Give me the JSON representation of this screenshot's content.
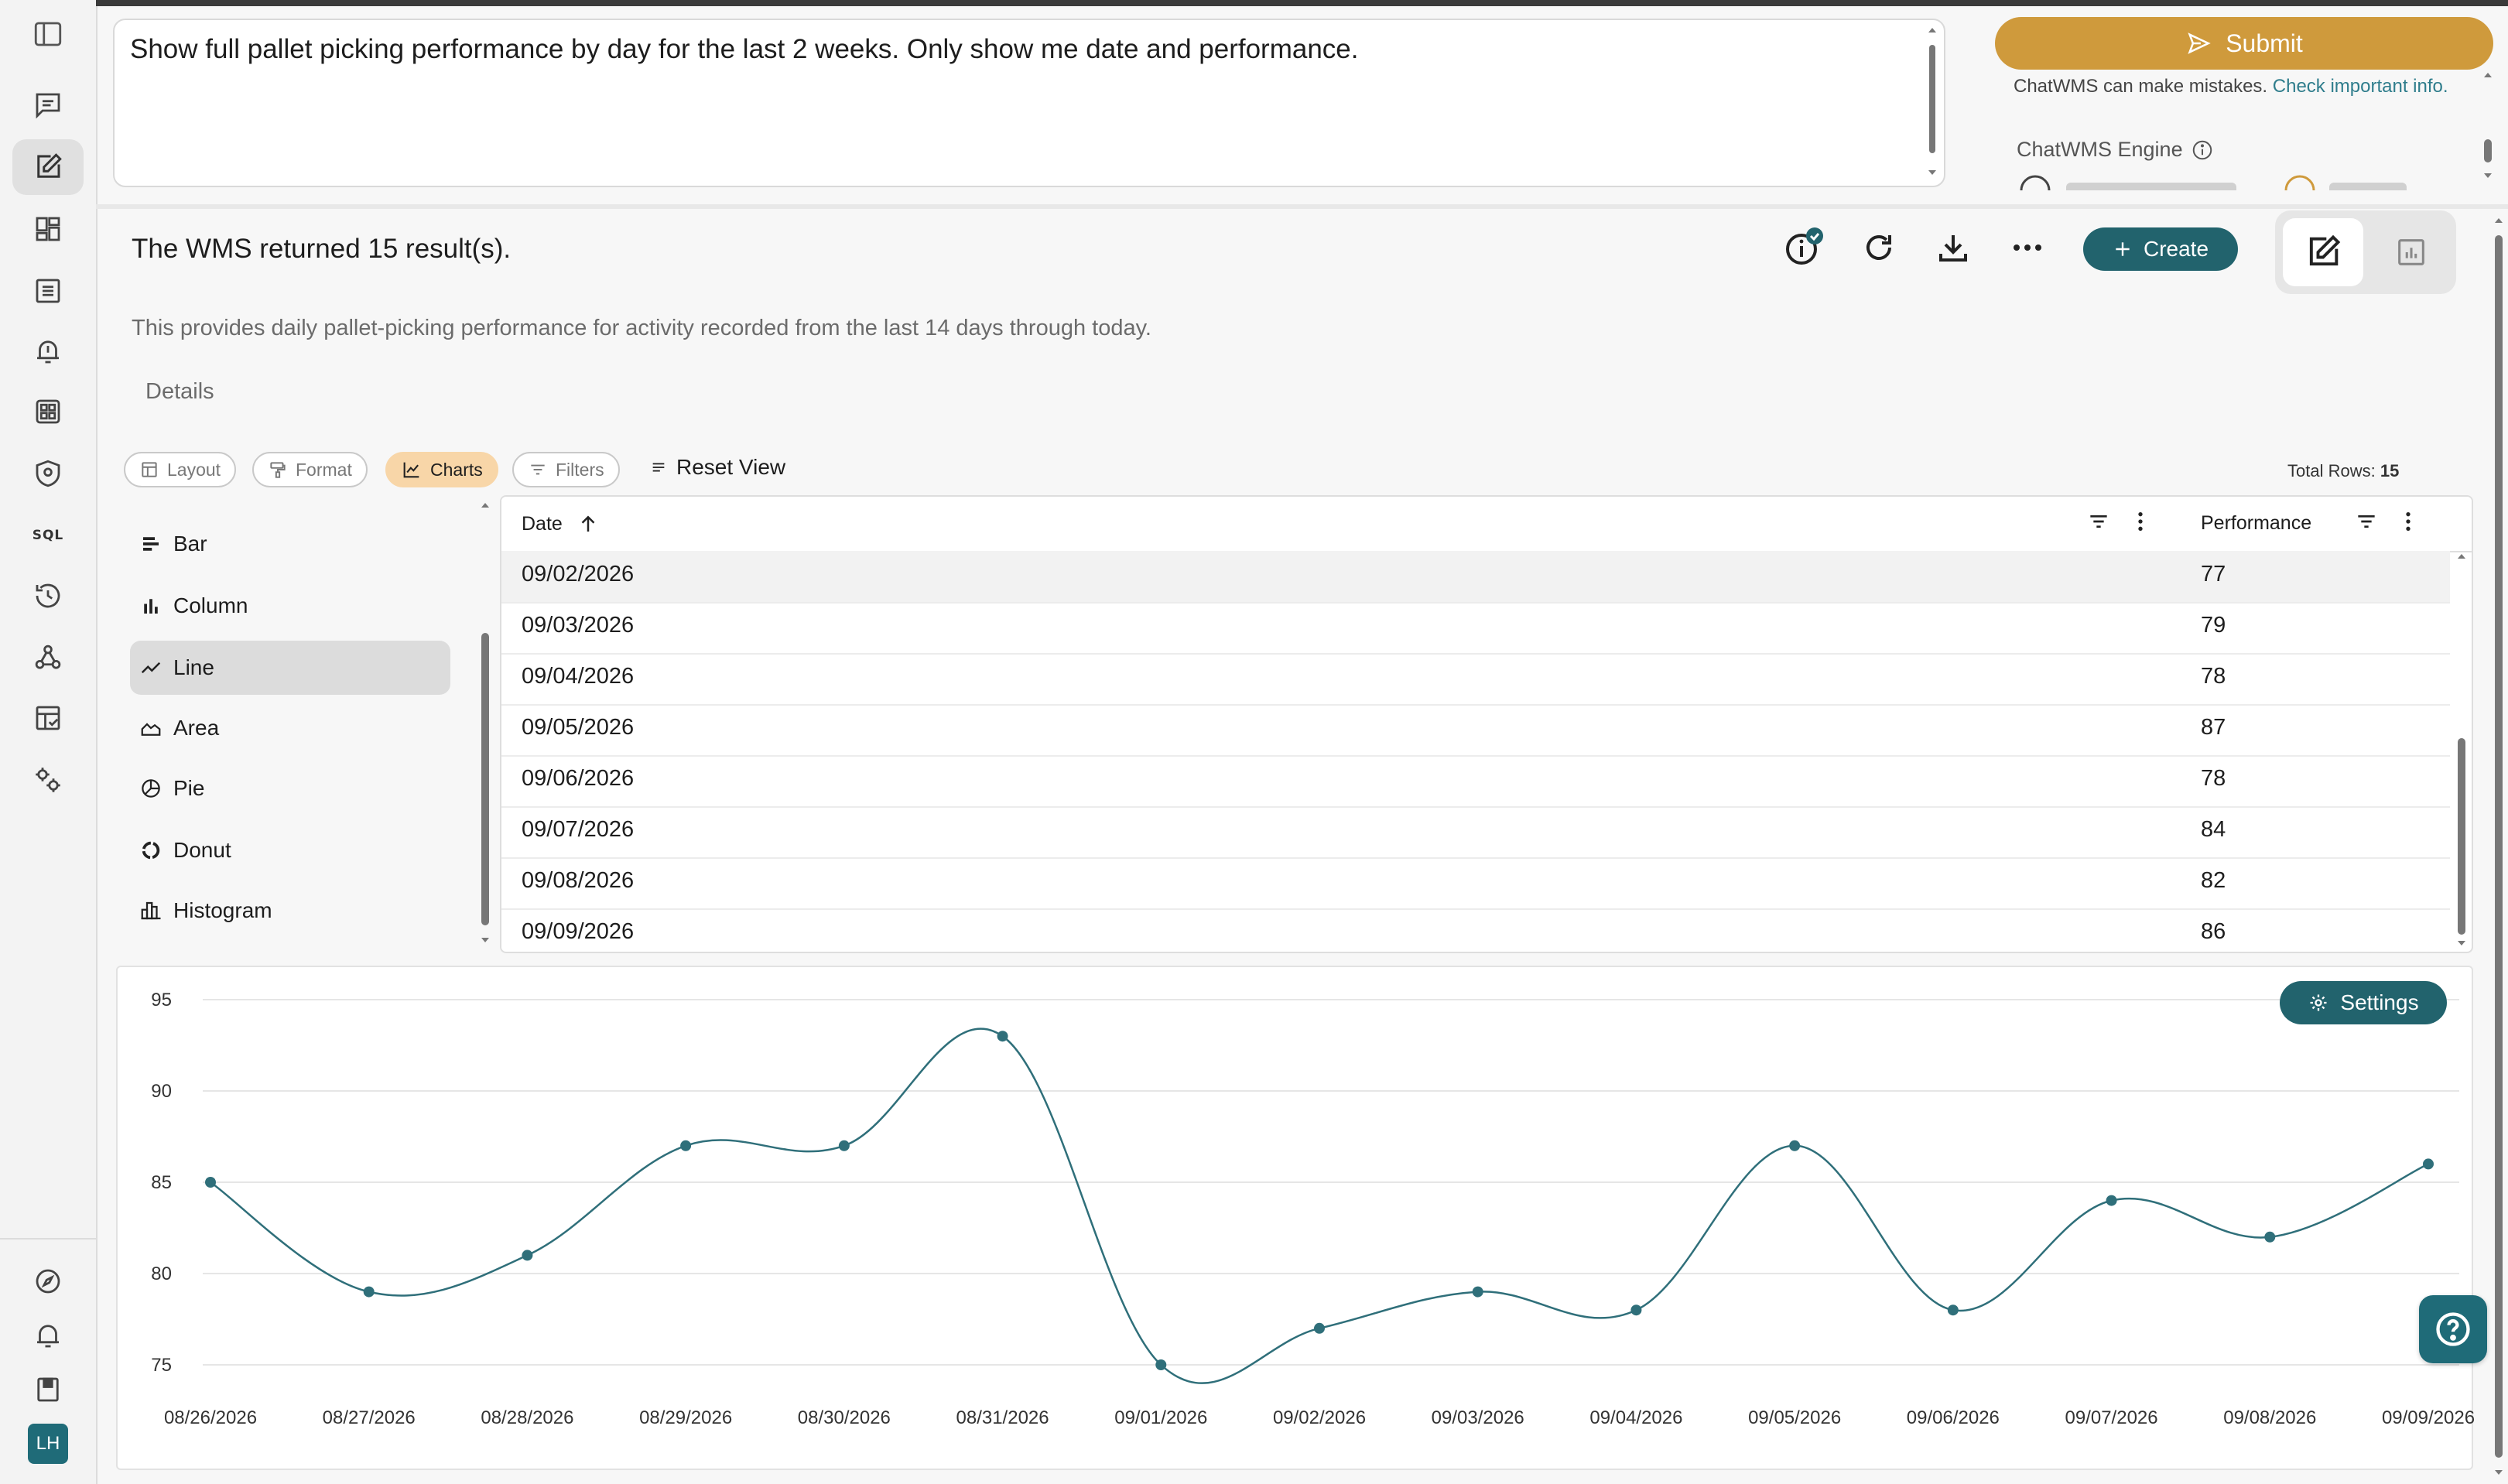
{
  "query": {
    "text": "Show full pallet picking performance by day for the last 2 weeks. Only show me date and performance."
  },
  "submit": {
    "label": "Submit"
  },
  "disclaimer": {
    "text": "ChatWMS can make mistakes.",
    "link": "Check important info."
  },
  "engine": {
    "label": "ChatWMS Engine"
  },
  "result": {
    "title": "The WMS returned 15 result(s).",
    "description": "This provides daily pallet-picking performance for activity recorded from the last 14 days through today.",
    "details_label": "Details"
  },
  "toolbar": {
    "create_label": "Create",
    "layout_label": "Layout",
    "format_label": "Format",
    "charts_label": "Charts",
    "filters_label": "Filters",
    "reset_label": "Reset View",
    "total_rows_label": "Total Rows:",
    "total_rows_value": "15"
  },
  "chart_types": [
    "Bar",
    "Column",
    "Line",
    "Area",
    "Pie",
    "Donut",
    "Histogram"
  ],
  "selected_chart_type": "Line",
  "table": {
    "columns": [
      "Date",
      "Performance"
    ],
    "rows": [
      [
        "09/02/2026",
        "77"
      ],
      [
        "09/03/2026",
        "79"
      ],
      [
        "09/04/2026",
        "78"
      ],
      [
        "09/05/2026",
        "87"
      ],
      [
        "09/06/2026",
        "78"
      ],
      [
        "09/07/2026",
        "84"
      ],
      [
        "09/08/2026",
        "82"
      ],
      [
        "09/09/2026",
        "86"
      ]
    ]
  },
  "settings_label": "Settings",
  "avatar_initials": "LH",
  "colors": {
    "accent": "#cf9a3c",
    "teal": "#22636d",
    "line": "#2f6f7a"
  },
  "chart_data": {
    "type": "line",
    "x": [
      "08/26/2026",
      "08/27/2026",
      "08/28/2026",
      "08/29/2026",
      "08/30/2026",
      "08/31/2026",
      "09/01/2026",
      "09/02/2026",
      "09/03/2026",
      "09/04/2026",
      "09/05/2026",
      "09/06/2026",
      "09/07/2026",
      "09/08/2026",
      "09/09/2026"
    ],
    "series": [
      {
        "values": [
          85,
          79,
          81,
          87,
          87,
          93,
          75,
          77,
          79,
          78,
          87,
          78,
          84,
          82,
          86
        ]
      }
    ],
    "y_ticks": [
      75,
      80,
      85,
      90,
      95
    ],
    "ylim": [
      75,
      95
    ],
    "grid": true,
    "title": "",
    "xlabel": "",
    "ylabel": ""
  }
}
